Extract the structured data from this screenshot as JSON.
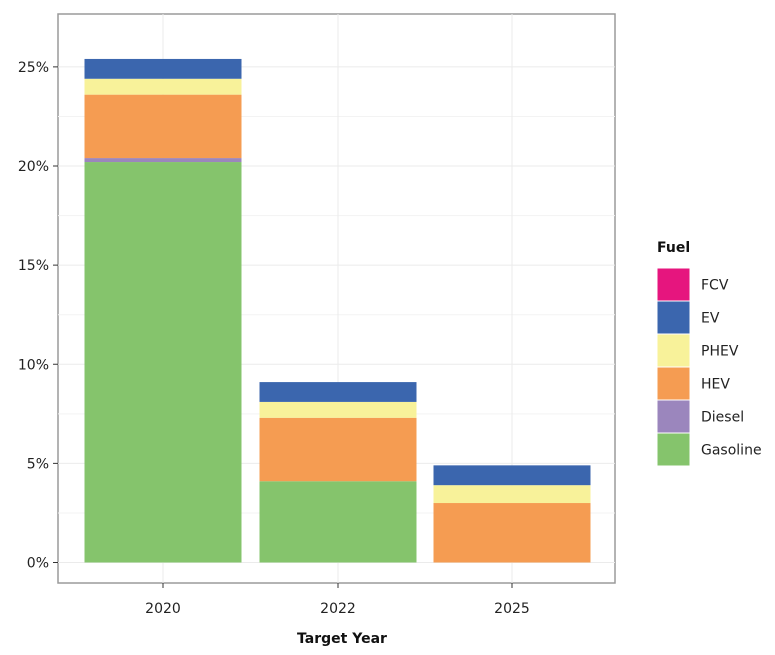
{
  "chart_data": {
    "type": "bar",
    "stacked": true,
    "categories": [
      "2020",
      "2022",
      "2025"
    ],
    "series": [
      {
        "name": "Gasoline",
        "values": [
          20.2,
          4.1,
          0
        ],
        "color": "#85c46c"
      },
      {
        "name": "Diesel",
        "values": [
          0.2,
          0,
          0
        ],
        "color": "#9b86bd"
      },
      {
        "name": "HEV",
        "values": [
          3.2,
          3.2,
          3.0
        ],
        "color": "#f59c52"
      },
      {
        "name": "PHEV",
        "values": [
          0.8,
          0.8,
          0.9
        ],
        "color": "#f8f29a"
      },
      {
        "name": "EV",
        "values": [
          1.0,
          1.0,
          1.0
        ],
        "color": "#3b66ae"
      },
      {
        "name": "FCV",
        "values": [
          0,
          0,
          0
        ],
        "color": "#e6157e"
      }
    ],
    "legend_order": [
      "FCV",
      "EV",
      "PHEV",
      "HEV",
      "Diesel",
      "Gasoline"
    ],
    "xlabel": "Target Year",
    "ylabel": "",
    "ylim": [
      0,
      27
    ],
    "yticks": [
      0,
      5,
      10,
      15,
      20,
      25
    ],
    "ytick_labels": [
      "0%",
      "5%",
      "10%",
      "15%",
      "20%",
      "25%"
    ],
    "legend_title": "Fuel",
    "legend_position": "right",
    "grid": true
  }
}
